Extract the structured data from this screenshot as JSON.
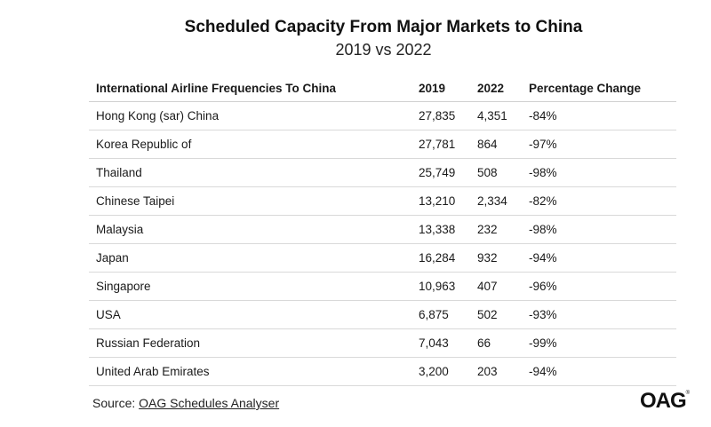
{
  "title": "Scheduled Capacity From Major Markets to China",
  "subtitle": "2019 vs 2022",
  "table": {
    "headers": [
      "International Airline Frequencies To China",
      "2019",
      "2022",
      "Percentage Change"
    ],
    "rows": [
      [
        "Hong Kong (sar) China",
        "27,835",
        "4,351",
        "-84%"
      ],
      [
        "Korea Republic of",
        "27,781",
        "864",
        "-97%"
      ],
      [
        "Thailand",
        "25,749",
        "508",
        "-98%"
      ],
      [
        "Chinese Taipei",
        "13,210",
        "2,334",
        "-82%"
      ],
      [
        "Malaysia",
        "13,338",
        "232",
        "-98%"
      ],
      [
        "Japan",
        "16,284",
        "932",
        "-94%"
      ],
      [
        "Singapore",
        "10,963",
        "407",
        "-96%"
      ],
      [
        "USA",
        "6,875",
        "502",
        "-93%"
      ],
      [
        "Russian Federation",
        "7,043",
        "66",
        "-99%"
      ],
      [
        "United Arab Emirates",
        "3,200",
        "203",
        "-94%"
      ]
    ]
  },
  "source": {
    "label": "Source:",
    "link_text": "OAG Schedules Analyser"
  },
  "logo": {
    "text": "OAG",
    "mark": "®"
  }
}
